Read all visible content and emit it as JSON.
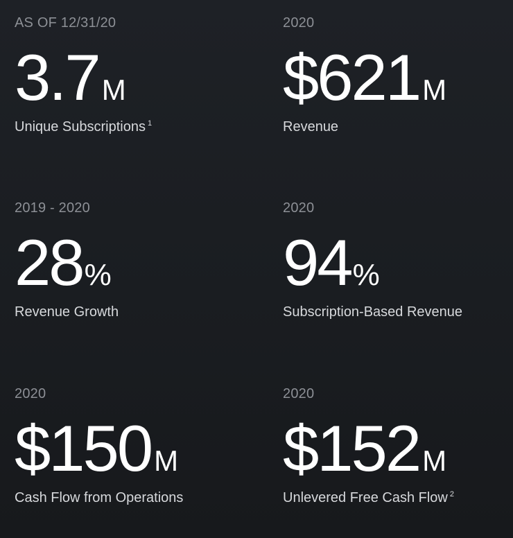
{
  "stats": [
    {
      "period": "AS OF 12/31/20",
      "value": "3.7",
      "unit": "M",
      "label": "Unique Subscriptions",
      "footnote": "1"
    },
    {
      "period": "2020",
      "value": "$621",
      "unit": "M",
      "label": "Revenue",
      "footnote": ""
    },
    {
      "period": "2019 - 2020",
      "value": "28",
      "unit": "%",
      "label": "Revenue Growth",
      "footnote": ""
    },
    {
      "period": "2020",
      "value": "94",
      "unit": "%",
      "label": "Subscription-Based Revenue",
      "footnote": ""
    },
    {
      "period": "2020",
      "value": "$150",
      "unit": "M",
      "label": "Cash Flow from Operations",
      "footnote": ""
    },
    {
      "period": "2020",
      "value": "$152",
      "unit": "M",
      "label": "Unlevered Free Cash Flow",
      "footnote": "2"
    }
  ],
  "colors": {
    "background": "#1c1f23",
    "period_text": "#8d9096",
    "value_text": "#ffffff",
    "label_text": "#d7d9dc"
  }
}
